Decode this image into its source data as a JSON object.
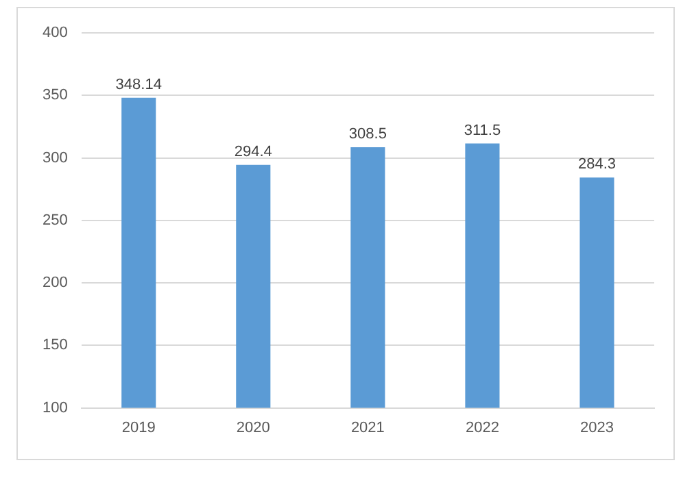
{
  "chart_data": {
    "type": "bar",
    "categories": [
      "2019",
      "2020",
      "2021",
      "2022",
      "2023"
    ],
    "values": [
      348.14,
      294.4,
      308.5,
      311.5,
      284.3
    ],
    "color": "#5b9bd5",
    "ylim": [
      100,
      400
    ],
    "yticks": [
      100,
      150,
      200,
      250,
      300,
      350,
      400
    ],
    "grid": "y",
    "data_labels": true,
    "legend": false
  }
}
